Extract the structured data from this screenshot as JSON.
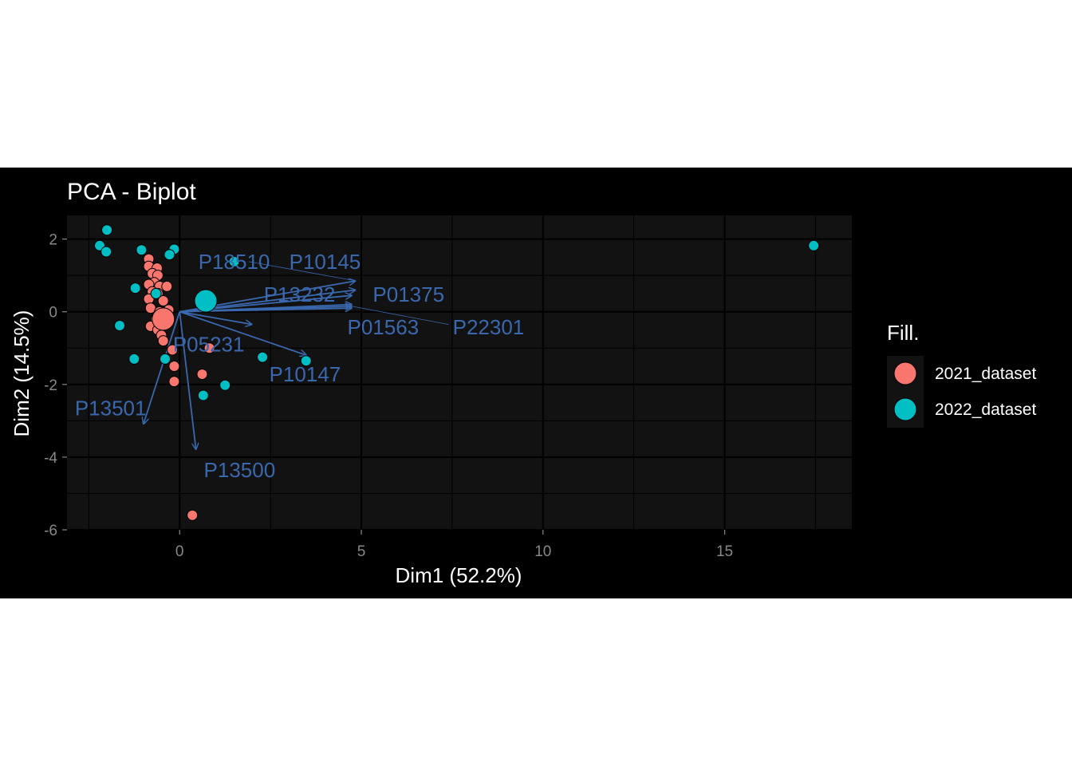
{
  "chart_data": {
    "type": "scatter",
    "title": "PCA - Biplot",
    "xlabel": "Dim1 (52.2%)",
    "ylabel": "Dim2 (14.5%)",
    "xlim": [
      -3.1,
      18.5
    ],
    "ylim": [
      -6.0,
      2.65
    ],
    "x_ticks": [
      0,
      5,
      10,
      15
    ],
    "y_ticks": [
      2,
      0,
      -2,
      -4,
      -6
    ],
    "grid": true,
    "legend": {
      "title": "Fill.",
      "placement": "right"
    },
    "series": [
      {
        "name": "2021_dataset",
        "color": "#F8766D",
        "points": [
          [
            -0.85,
            1.45
          ],
          [
            -0.85,
            1.25
          ],
          [
            -0.62,
            1.2
          ],
          [
            -0.75,
            1.05
          ],
          [
            -0.6,
            1.0
          ],
          [
            -0.7,
            0.8
          ],
          [
            -0.85,
            0.75
          ],
          [
            -0.55,
            0.7
          ],
          [
            -0.35,
            0.7
          ],
          [
            -0.75,
            0.55
          ],
          [
            -0.6,
            0.5
          ],
          [
            -0.85,
            0.35
          ],
          [
            -0.45,
            0.3
          ],
          [
            -0.8,
            0.1
          ],
          [
            -0.55,
            0.0
          ],
          [
            -0.3,
            0.05
          ],
          [
            -0.65,
            -0.2
          ],
          [
            -0.8,
            -0.4
          ],
          [
            -0.6,
            -0.5
          ],
          [
            -0.5,
            -0.65
          ],
          [
            -0.45,
            -0.8
          ],
          [
            -0.2,
            -1.05
          ],
          [
            0.82,
            -1.0
          ],
          [
            -0.15,
            -1.5
          ],
          [
            -0.15,
            -1.92
          ],
          [
            0.62,
            -1.72
          ],
          [
            0.35,
            -5.6
          ]
        ],
        "centroid": [
          -0.45,
          -0.2
        ]
      },
      {
        "name": "2022_dataset",
        "color": "#00BFC4",
        "points": [
          [
            -2.0,
            2.25
          ],
          [
            -2.2,
            1.82
          ],
          [
            -2.02,
            1.65
          ],
          [
            -1.05,
            1.7
          ],
          [
            -0.15,
            1.72
          ],
          [
            -0.28,
            1.57
          ],
          [
            1.5,
            1.38
          ],
          [
            -1.22,
            0.65
          ],
          [
            -0.65,
            0.5
          ],
          [
            -1.65,
            -0.38
          ],
          [
            -1.25,
            -1.3
          ],
          [
            -0.4,
            -1.3
          ],
          [
            2.28,
            -1.25
          ],
          [
            3.48,
            -1.35
          ],
          [
            1.25,
            -2.02
          ],
          [
            0.65,
            -2.3
          ],
          [
            17.45,
            1.82
          ]
        ],
        "centroid": [
          0.72,
          0.3
        ]
      }
    ],
    "loadings": [
      {
        "name": "P18510",
        "x": 4.85,
        "y": 0.85,
        "label_at": [
          1.5,
          1.38
        ]
      },
      {
        "name": "P10145",
        "x": 4.85,
        "y": 0.6,
        "label_at": [
          4.0,
          1.38
        ]
      },
      {
        "name": "P13232",
        "x": 4.75,
        "y": 0.45,
        "label_at": [
          3.3,
          0.48
        ]
      },
      {
        "name": "P01375",
        "x": 4.75,
        "y": 0.2,
        "label_at": [
          6.3,
          0.48
        ]
      },
      {
        "name": "P01563",
        "x": 4.75,
        "y": 0.1,
        "label_at": [
          5.6,
          -0.42
        ]
      },
      {
        "name": "P22301",
        "x": 4.75,
        "y": 0.15,
        "label_at": [
          8.5,
          -0.42
        ]
      },
      {
        "name": "P05231",
        "x": 2.0,
        "y": -0.35,
        "label_at": [
          0.8,
          -0.9
        ]
      },
      {
        "name": "P10147",
        "x": 3.5,
        "y": -1.2,
        "label_at": [
          3.45,
          -1.72
        ]
      },
      {
        "name": "P13501",
        "x": -1.0,
        "y": -3.1,
        "label_at": [
          -1.9,
          -2.65
        ]
      },
      {
        "name": "P13500",
        "x": 0.45,
        "y": -3.8,
        "label_at": [
          1.65,
          -4.35
        ]
      }
    ],
    "loading_color": "#3A68AE"
  }
}
